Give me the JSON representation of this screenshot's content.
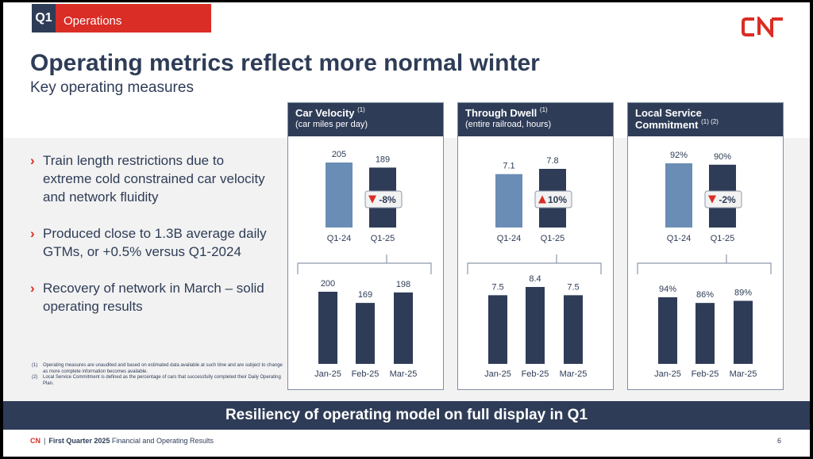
{
  "header": {
    "quarter_tag": "Q1",
    "section_label": "Operations",
    "title": "Operating metrics reflect more normal winter",
    "subtitle": "Key operating measures"
  },
  "logo": {
    "text": "CN",
    "icon": "cn-logo-icon",
    "color": "#d92d25"
  },
  "bullets": [
    "Train length restrictions due to extreme cold constrained car velocity and network fluidity",
    "Produced close to 1.3B average daily GTMs, or +0.5% versus Q1-2024",
    "Recovery of network in March – solid operating results"
  ],
  "bullet_marker": "›",
  "footnotes": [
    {
      "num": "(1)",
      "text": "Operating measures are unaudited and based on estimated data available at such time and are subject to change as more complete information becomes available."
    },
    {
      "num": "(2)",
      "text": "Local Service Commitment is defined as the percentage of cars that successfully completed their Daily Operating Plan."
    }
  ],
  "panels": [
    {
      "title": "Car Velocity",
      "note": "(1)",
      "title2": "",
      "subtitle": "(car miles per day)"
    },
    {
      "title": "Through Dwell",
      "note": "(1)",
      "title2": "",
      "subtitle": "(entire railroad, hours)"
    },
    {
      "title": "Local Service",
      "note": "",
      "title2": "Commitment",
      "note2": "(1) (2)",
      "subtitle": ""
    }
  ],
  "chart_data": [
    {
      "type": "bar",
      "title": "Car Velocity",
      "unit": "car miles per day",
      "top": {
        "categories": [
          "Q1-24",
          "Q1-25"
        ],
        "values": [
          205,
          189
        ],
        "labels": [
          "205",
          "189"
        ],
        "change": {
          "direction": "down",
          "text": "-8%"
        }
      },
      "bottom": {
        "categories": [
          "Jan-25",
          "Feb-25",
          "Mar-25"
        ],
        "values": [
          200,
          169,
          198
        ],
        "labels": [
          "200",
          "169",
          "198"
        ]
      }
    },
    {
      "type": "bar",
      "title": "Through Dwell",
      "unit": "entire railroad, hours",
      "top": {
        "categories": [
          "Q1-24",
          "Q1-25"
        ],
        "values": [
          7.1,
          7.8
        ],
        "labels": [
          "7.1",
          "7.8"
        ],
        "change": {
          "direction": "up",
          "text": "10%"
        }
      },
      "bottom": {
        "categories": [
          "Jan-25",
          "Feb-25",
          "Mar-25"
        ],
        "values": [
          7.5,
          8.4,
          7.5
        ],
        "labels": [
          "7.5",
          "8.4",
          "7.5"
        ]
      }
    },
    {
      "type": "bar",
      "title": "Local Service Commitment",
      "unit": "%",
      "top": {
        "categories": [
          "Q1-24",
          "Q1-25"
        ],
        "values": [
          92,
          90
        ],
        "labels": [
          "92%",
          "90%"
        ],
        "change": {
          "direction": "down",
          "text": "-2%"
        }
      },
      "bottom": {
        "categories": [
          "Jan-25",
          "Feb-25",
          "Mar-25"
        ],
        "values": [
          94,
          86,
          89
        ],
        "labels": [
          "94%",
          "86%",
          "89%"
        ]
      }
    }
  ],
  "colors": {
    "navy": "#2e3c57",
    "light_bar": "#6a8db5",
    "red": "#d92d25",
    "badge_bg": "#f2f2f2"
  },
  "banner": "Resiliency of operating model on full display in Q1",
  "footer": {
    "brand": "CN",
    "separator": "|",
    "period": "First Quarter 2025",
    "text": "Financial and Operating Results",
    "page": "6"
  }
}
